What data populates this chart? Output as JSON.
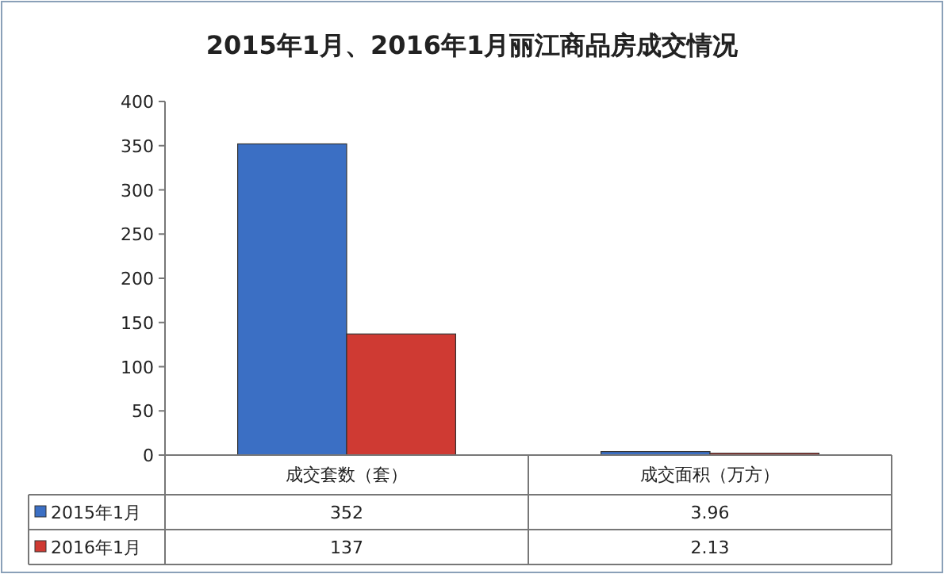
{
  "chart_data": {
    "type": "bar",
    "title": "2015年1月、2016年1月丽江商品房成交情况",
    "categories": [
      "成交套数（套）",
      "成交面积（万方）"
    ],
    "series": [
      {
        "name": "2015年1月",
        "color": "#3b6fc4",
        "values": [
          352,
          3.96
        ]
      },
      {
        "name": "2016年1月",
        "color": "#cf3a33",
        "values": [
          137,
          2.13
        ]
      }
    ],
    "ylim": [
      0,
      400
    ],
    "yticks": [
      0,
      50,
      100,
      150,
      200,
      250,
      300,
      350,
      400
    ],
    "data_labels": true,
    "legend": "bottom",
    "grid": false
  }
}
